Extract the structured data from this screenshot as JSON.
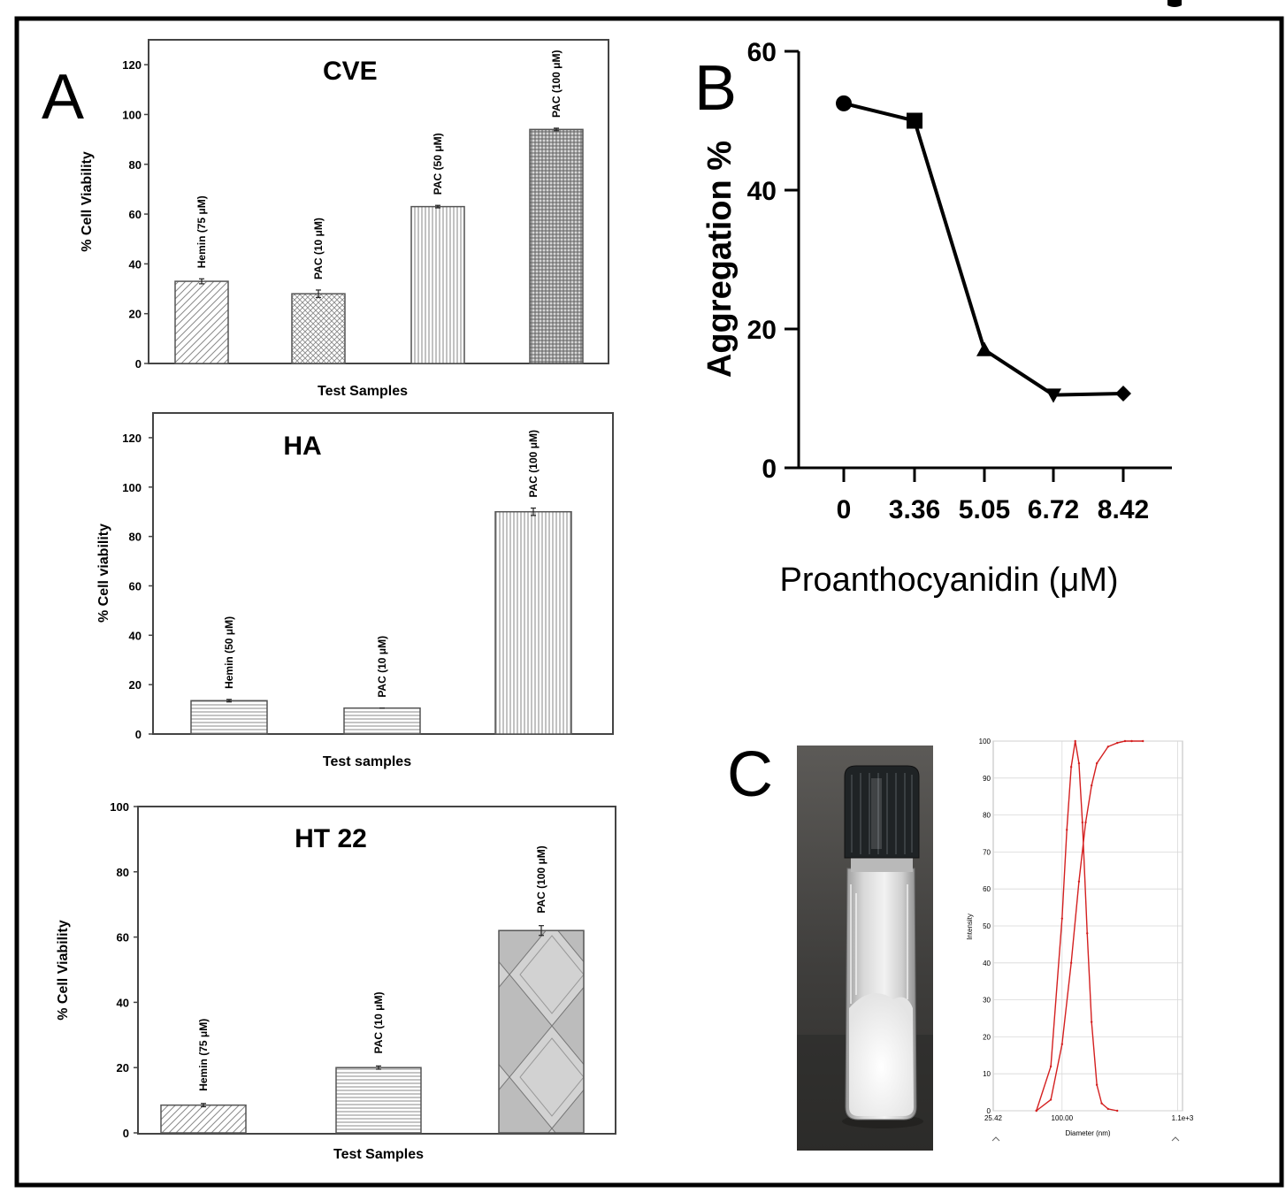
{
  "panels": {
    "A": "A",
    "B": "B",
    "C": "C"
  },
  "chart_data": [
    {
      "id": "cve",
      "type": "bar",
      "title": "CVE",
      "xlabel": "Test Samples",
      "ylabel": "% Cell Viability",
      "ylim": [
        0,
        130
      ],
      "yticks": [
        0,
        20,
        40,
        60,
        80,
        100,
        120
      ],
      "categories": [
        "Hemin (75 μM)",
        "PAC (10 μM)",
        "PAC (50 μM)",
        "PAC (100 μM)"
      ],
      "values": [
        33,
        28,
        63,
        94
      ],
      "errors": [
        1,
        1.5,
        0.5,
        0.5
      ],
      "patterns": [
        "diag",
        "cross",
        "vert",
        "grid"
      ]
    },
    {
      "id": "ha",
      "type": "bar",
      "title": "HA",
      "xlabel": "Test samples",
      "ylabel": "% Cell viability",
      "ylim": [
        0,
        130
      ],
      "yticks": [
        0,
        20,
        40,
        60,
        80,
        100,
        120
      ],
      "categories": [
        "Hemin (50 μM)",
        "PAC (10 μM)",
        "PAC (100 μM)"
      ],
      "values": [
        13.5,
        10.5,
        90
      ],
      "errors": [
        0.5,
        0,
        1.5
      ],
      "patterns": [
        "horiz",
        "horiz",
        "vert"
      ]
    },
    {
      "id": "ht22",
      "type": "bar",
      "title": "HT 22",
      "xlabel": "Test Samples",
      "ylabel": "% Cell Viability",
      "ylim": [
        0,
        100
      ],
      "yticks": [
        0,
        20,
        40,
        60,
        80,
        100
      ],
      "categories": [
        "Hemin (75 μM)",
        "PAC (10 μM)",
        "PAC (100 μM)"
      ],
      "values": [
        8.5,
        20,
        62
      ],
      "errors": [
        0.5,
        0.5,
        1.5
      ],
      "patterns": [
        "diag",
        "horiz",
        "diamond"
      ]
    },
    {
      "id": "aggregation",
      "type": "line",
      "title": "",
      "xlabel": "Proanthocyanidin (μM)",
      "ylabel": "Aggregation %",
      "ylim": [
        0,
        60
      ],
      "yticks": [
        0,
        20,
        40,
        60
      ],
      "categories": [
        "0",
        "3.36",
        "5.05",
        "6.72",
        "8.42"
      ],
      "values": [
        52.5,
        50,
        17,
        10.5,
        10.7
      ],
      "markers": [
        "circle",
        "square",
        "triangle-up",
        "triangle-down",
        "diamond"
      ]
    },
    {
      "id": "dls",
      "type": "line",
      "title": "",
      "xlabel": "Diameter (nm)",
      "ylabel": "Intensity",
      "xscale": "log",
      "xlim": [
        25.42,
        1100
      ],
      "ylim": [
        0,
        100
      ],
      "yticks": [
        0,
        10,
        20,
        30,
        40,
        50,
        60,
        70,
        80,
        90,
        100
      ],
      "xtick_labels": [
        "25.42",
        "100.00",
        "1.1e+3"
      ],
      "series": [
        {
          "x": [
            60,
            80,
            100,
            110,
            120,
            130,
            140,
            150,
            165,
            180,
            200,
            220,
            250,
            300
          ],
          "y": [
            0,
            12,
            52,
            76,
            93,
            100,
            94,
            78,
            48,
            24,
            7,
            2,
            0.5,
            0
          ]
        },
        {
          "x": [
            60,
            80,
            100,
            120,
            140,
            160,
            180,
            200,
            250,
            300,
            350,
            400,
            500
          ],
          "y": [
            0,
            3,
            18,
            40,
            62,
            78,
            88,
            94,
            98.5,
            99.5,
            100,
            100,
            100
          ]
        }
      ],
      "color": "#d42020"
    }
  ]
}
